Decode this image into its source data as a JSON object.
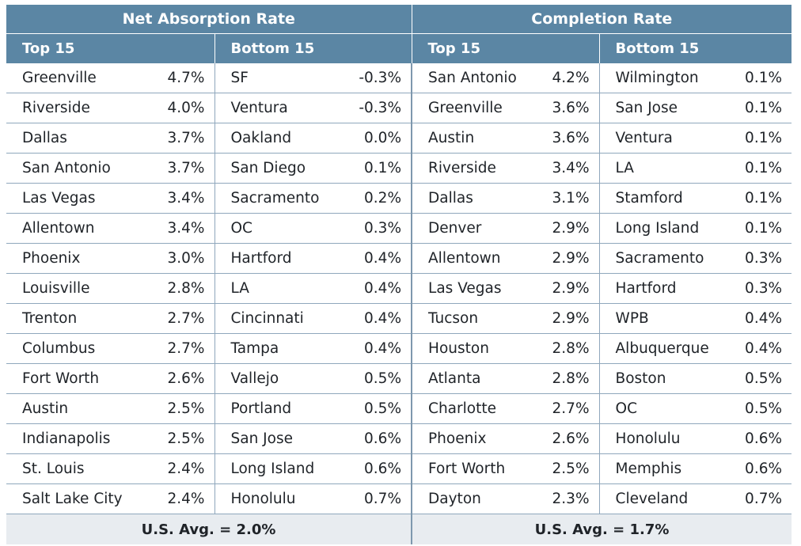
{
  "net_absorption": {
    "title": "Net Absorption Rate",
    "top_label": "Top 15",
    "bottom_label": "Bottom 15",
    "top": [
      {
        "city": "Greenville",
        "value": "4.7%"
      },
      {
        "city": "Riverside",
        "value": "4.0%"
      },
      {
        "city": "Dallas",
        "value": "3.7%"
      },
      {
        "city": "San Antonio",
        "value": "3.7%"
      },
      {
        "city": "Las Vegas",
        "value": "3.4%"
      },
      {
        "city": "Allentown",
        "value": "3.4%"
      },
      {
        "city": "Phoenix",
        "value": "3.0%"
      },
      {
        "city": "Louisville",
        "value": "2.8%"
      },
      {
        "city": "Trenton",
        "value": "2.7%"
      },
      {
        "city": "Columbus",
        "value": "2.7%"
      },
      {
        "city": "Fort Worth",
        "value": "2.6%"
      },
      {
        "city": "Austin",
        "value": "2.5%"
      },
      {
        "city": "Indianapolis",
        "value": "2.5%"
      },
      {
        "city": "St. Louis",
        "value": "2.4%"
      },
      {
        "city": "Salt Lake City",
        "value": "2.4%"
      }
    ],
    "bottom": [
      {
        "city": "SF",
        "value": "-0.3%"
      },
      {
        "city": "Ventura",
        "value": "-0.3%"
      },
      {
        "city": "Oakland",
        "value": "0.0%"
      },
      {
        "city": "San Diego",
        "value": "0.1%"
      },
      {
        "city": "Sacramento",
        "value": "0.2%"
      },
      {
        "city": "OC",
        "value": "0.3%"
      },
      {
        "city": "Hartford",
        "value": "0.4%"
      },
      {
        "city": "LA",
        "value": "0.4%"
      },
      {
        "city": "Cincinnati",
        "value": "0.4%"
      },
      {
        "city": "Tampa",
        "value": "0.4%"
      },
      {
        "city": "Vallejo",
        "value": "0.5%"
      },
      {
        "city": "Portland",
        "value": "0.5%"
      },
      {
        "city": "San Jose",
        "value": "0.6%"
      },
      {
        "city": "Long Island",
        "value": "0.6%"
      },
      {
        "city": "Honolulu",
        "value": "0.7%"
      }
    ],
    "avg": "U.S. Avg. = 2.0%"
  },
  "completion": {
    "title": "Completion Rate",
    "top_label": "Top 15",
    "bottom_label": "Bottom 15",
    "top": [
      {
        "city": "San Antonio",
        "value": "4.2%"
      },
      {
        "city": "Greenville",
        "value": "3.6%"
      },
      {
        "city": "Austin",
        "value": "3.6%"
      },
      {
        "city": "Riverside",
        "value": "3.4%"
      },
      {
        "city": "Dallas",
        "value": "3.1%"
      },
      {
        "city": "Denver",
        "value": "2.9%"
      },
      {
        "city": "Allentown",
        "value": "2.9%"
      },
      {
        "city": "Las Vegas",
        "value": "2.9%"
      },
      {
        "city": "Tucson",
        "value": "2.9%"
      },
      {
        "city": "Houston",
        "value": "2.8%"
      },
      {
        "city": "Atlanta",
        "value": "2.8%"
      },
      {
        "city": "Charlotte",
        "value": "2.7%"
      },
      {
        "city": "Phoenix",
        "value": "2.6%"
      },
      {
        "city": "Fort Worth",
        "value": "2.5%"
      },
      {
        "city": "Dayton",
        "value": "2.3%"
      }
    ],
    "bottom": [
      {
        "city": "Wilmington",
        "value": "0.1%"
      },
      {
        "city": "San Jose",
        "value": "0.1%"
      },
      {
        "city": "Ventura",
        "value": "0.1%"
      },
      {
        "city": "LA",
        "value": "0.1%"
      },
      {
        "city": "Stamford",
        "value": "0.1%"
      },
      {
        "city": "Long Island",
        "value": "0.1%"
      },
      {
        "city": "Sacramento",
        "value": "0.3%"
      },
      {
        "city": "Hartford",
        "value": "0.3%"
      },
      {
        "city": "WPB",
        "value": "0.4%"
      },
      {
        "city": "Albuquerque",
        "value": "0.4%"
      },
      {
        "city": "Boston",
        "value": "0.5%"
      },
      {
        "city": "OC",
        "value": "0.5%"
      },
      {
        "city": "Honolulu",
        "value": "0.6%"
      },
      {
        "city": "Memphis",
        "value": "0.6%"
      },
      {
        "city": "Cleveland",
        "value": "0.7%"
      }
    ],
    "avg": "U.S. Avg. = 1.7%"
  },
  "colors": {
    "header_bg": "#5b86a4",
    "footer_bg": "#e8ecf0",
    "grid": "#8fa7bc"
  }
}
